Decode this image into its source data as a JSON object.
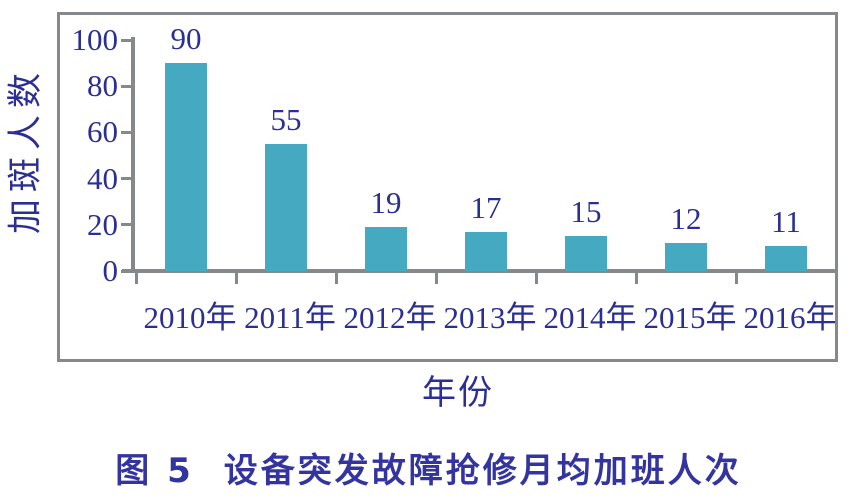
{
  "chart_data": {
    "type": "bar",
    "title": "图 5 设备突发故障抢修月均加班人次",
    "categories": [
      "2010年",
      "2011年",
      "2012年",
      "2013年",
      "2014年",
      "2015年",
      "2016年"
    ],
    "values": [
      90,
      55,
      19,
      17,
      15,
      12,
      11
    ],
    "xlabel": "年份",
    "ylabel": "加斑人数",
    "y_ticks": [
      0,
      20,
      40,
      60,
      80,
      100
    ],
    "ylim": [
      0,
      100
    ],
    "grid": false,
    "legend": "none",
    "bar_color": "#46a9c2",
    "axis_color": "#85898c",
    "text_color": "#2b2f93",
    "caption_color": "#3434a0"
  },
  "caption": {
    "figure_label": "图 5",
    "figure_title": "设备突发故障抢修月均加班人次"
  }
}
